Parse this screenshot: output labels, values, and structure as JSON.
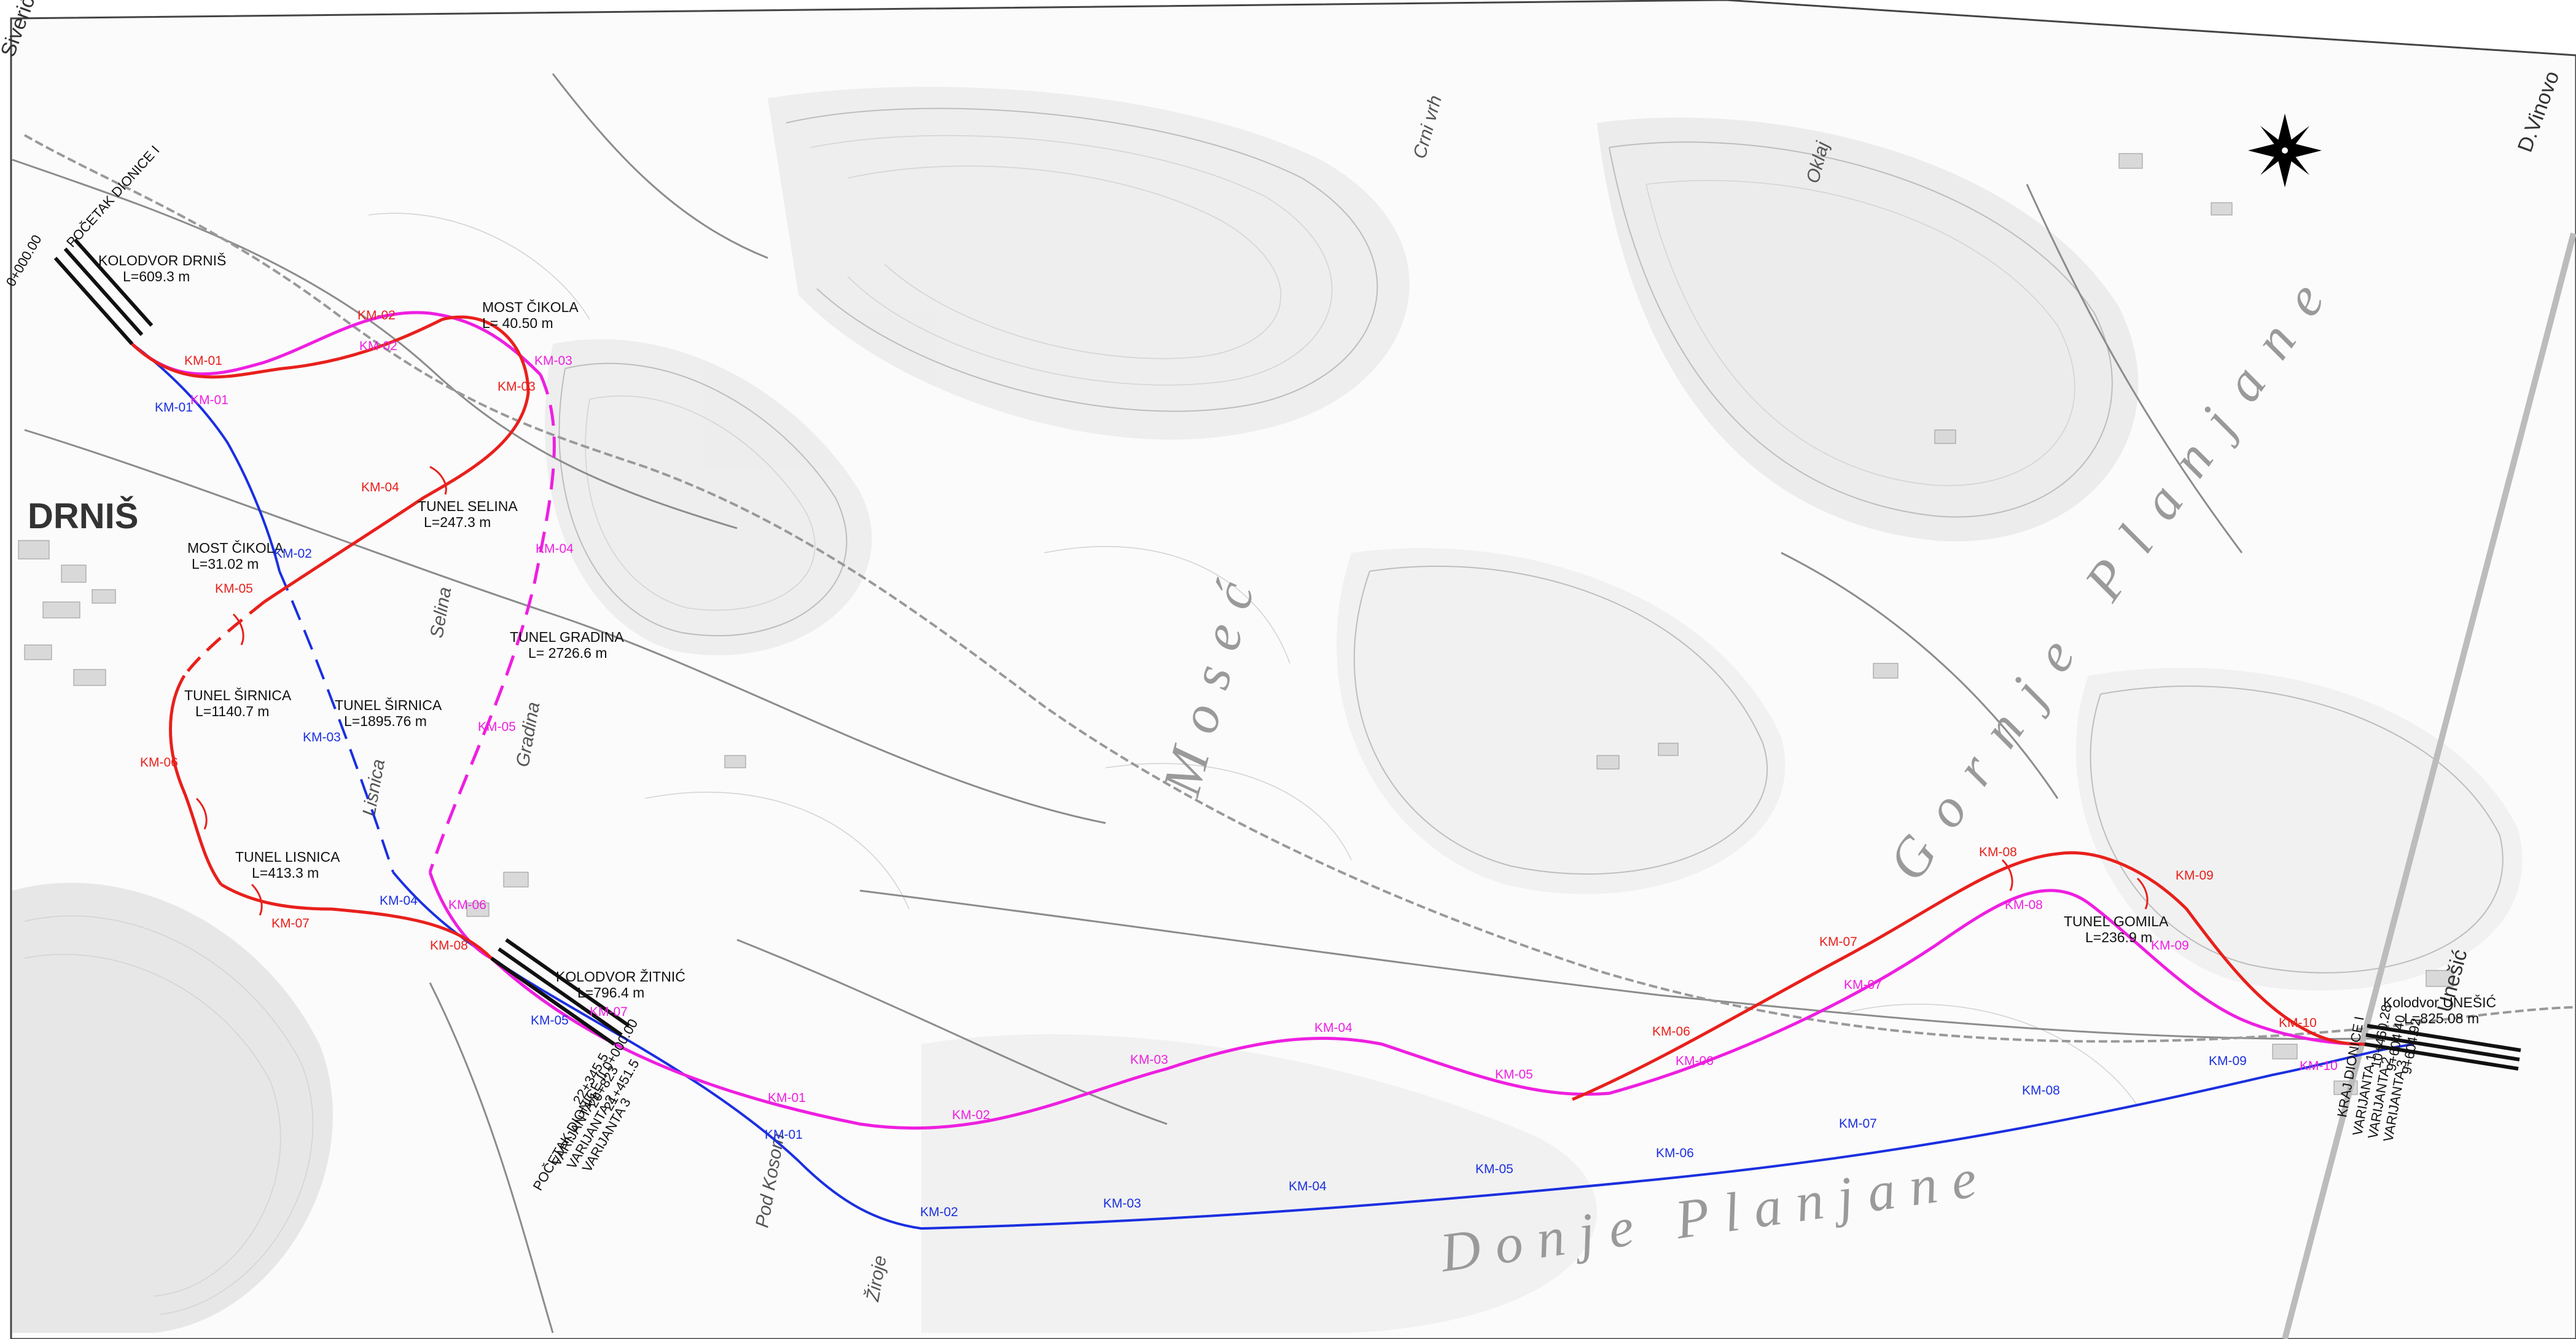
{
  "colors": {
    "red": "#e8201c",
    "magenta": "#ee1fe0",
    "blue": "#1b2fe0",
    "track": "#222222",
    "terrain": "#b5b5b5"
  },
  "icons": {
    "north_arrow": "compass-rose-icon"
  },
  "map": {
    "place_names": {
      "siverić": "Siverić",
      "drnis": "DRNIŠ",
      "unesic": "Unešić",
      "vinovo": "D.Vinovo",
      "gornje_planjane": "Gornje Planjane",
      "donje_planjane": "Donje Planjane",
      "moseć": "Moseć",
      "crni_vrh": "Crni vrh",
      "oklaj": "Oklaj",
      "lisnica": "Lisnica",
      "selina": "Selina",
      "gradina": "Gradina",
      "pod_kosom": "Pod Kosom",
      "ziroje": "Žiroje"
    }
  },
  "stations": {
    "drnis": {
      "name": "KOLODVOR DRNIŠ",
      "length": "L=609.3 m"
    },
    "zitnic": {
      "name": "KOLODVOR ŽITNIĆ",
      "length": "L=796.4 m"
    },
    "unesic": {
      "name": "Kolodvor UNEŠIĆ",
      "length": "L=825.08 m"
    }
  },
  "structures": {
    "most_cikola_red": {
      "name": "MOST ČIKOLA",
      "length": "L= 40.50 m"
    },
    "tunel_selina": {
      "name": "TUNEL SELINA",
      "length": "L=247.3 m"
    },
    "most_cikola_blue": {
      "name": "MOST ČIKOLA",
      "length": "L=31.02 m"
    },
    "tunel_gradina": {
      "name": "TUNEL  GRADINA",
      "length": "L= 2726.6 m"
    },
    "tunel_sirnica_red": {
      "name": "TUNEL  ŠIRNICA",
      "length": "L=1140.7 m"
    },
    "tunel_sirnica_blue": {
      "name": "TUNEL ŠIRNICA",
      "length": "L=1895.76 m"
    },
    "tunel_lisnica": {
      "name": "TUNEL LISNICA",
      "length": "L=413.3 m"
    },
    "tunel_gomila": {
      "name": "TUNEL  GOMILA",
      "length": "L=236.9 m"
    }
  },
  "section_marks": {
    "start": "POČETAK DIONICE I",
    "start_chainage": "0+000.00",
    "start_second": "POČETAK DIONICE II 0+000.00",
    "start_second_variants": [
      "VARIJANTA 1",
      "VARIJANTA 2",
      "VARIJANTA 3"
    ],
    "start_second_values": [
      "22+345.5",
      "20+823",
      "21+451.5"
    ],
    "end": "KRAJ DIONICE I",
    "end_variants": [
      "VARIJANTA 1",
      "VARIJANTA 2",
      "VARIJANTA 3"
    ],
    "end_values": [
      "10+460.28",
      "9+604.40",
      "9+604.92"
    ]
  },
  "kilometer_marks": {
    "red_dionica1": [
      "KM-01",
      "KM-02",
      "KM-03",
      "KM-04",
      "KM-05",
      "KM-06",
      "KM-07",
      "KM-08"
    ],
    "magenta_dionica1": [
      "KM-01",
      "KM-02",
      "KM-03",
      "KM-04",
      "KM-05",
      "KM-06",
      "KM-07"
    ],
    "blue_dionica1": [
      "KM-01",
      "KM-02",
      "KM-03",
      "KM-04"
    ],
    "red_dionica2": [
      "KM-06",
      "KM-07",
      "KM-08",
      "KM-09",
      "KM-10"
    ],
    "magenta_dionica2": [
      "KM-01",
      "KM-02",
      "KM-03",
      "KM-04",
      "KM-05",
      "KM-06",
      "KM-07",
      "KM-08",
      "KM-09",
      "KM-10"
    ],
    "blue_dionica2": [
      "KM-01",
      "KM-02",
      "KM-03",
      "KM-04",
      "KM-05",
      "KM-06",
      "KM-07",
      "KM-08",
      "KM-09",
      "KM-05"
    ]
  }
}
